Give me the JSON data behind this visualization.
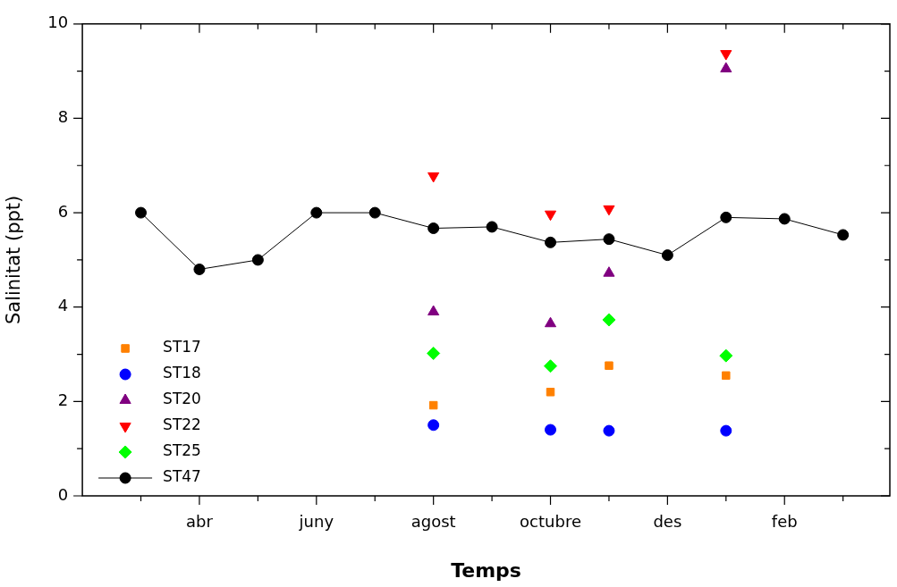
{
  "chart_data": {
    "type": "scatter",
    "xlabel": "Temps",
    "ylabel": "Salinitat (ppt)",
    "categories": [
      null,
      "abr",
      null,
      "juny",
      null,
      "agost",
      null,
      "octubre",
      null,
      "des",
      null,
      "feb",
      null
    ],
    "ylim": [
      0,
      10
    ],
    "yticks": [
      0,
      {
        "value": 1,
        "label": null
      },
      2,
      {
        "value": 3,
        "label": null
      },
      4,
      {
        "value": 5,
        "label": null
      },
      6,
      {
        "value": 7,
        "label": null
      },
      8,
      {
        "value": 9,
        "label": null
      },
      10
    ],
    "grid": false,
    "legend": "bottom left",
    "series": [
      {
        "name": "ST17",
        "type": "scatter",
        "marker": "square",
        "color": "#ff8000",
        "values": [
          null,
          null,
          null,
          null,
          null,
          1.92,
          null,
          2.2,
          2.76,
          null,
          2.55,
          null,
          null
        ]
      },
      {
        "name": "ST18",
        "type": "scatter",
        "marker": "circle",
        "color": "#0000ff",
        "values": [
          null,
          null,
          null,
          null,
          null,
          1.5,
          null,
          1.4,
          1.38,
          null,
          1.38,
          null,
          null
        ]
      },
      {
        "name": "ST20",
        "type": "scatter",
        "marker": "triangle",
        "color": "#800080",
        "values": [
          null,
          null,
          null,
          null,
          null,
          3.9,
          null,
          3.65,
          4.72,
          null,
          9.05,
          null,
          null
        ]
      },
      {
        "name": "ST22",
        "type": "scatter",
        "marker": "triangle-down",
        "color": "#ff0000",
        "values": [
          null,
          null,
          null,
          null,
          null,
          6.78,
          null,
          5.97,
          6.08,
          null,
          9.37,
          null,
          null
        ]
      },
      {
        "name": "ST25",
        "type": "scatter",
        "marker": "diamond",
        "color": "#00ff00",
        "values": [
          null,
          null,
          null,
          null,
          null,
          3.02,
          null,
          2.75,
          3.73,
          null,
          2.97,
          null,
          null
        ]
      },
      {
        "name": "ST47",
        "type": "line",
        "marker": "circle",
        "line_style": "solid",
        "color": "#000000",
        "values": [
          6.0,
          4.8,
          5.0,
          6.0,
          6.0,
          5.67,
          5.7,
          5.37,
          5.44,
          5.1,
          5.9,
          5.87,
          5.53
        ]
      }
    ]
  }
}
